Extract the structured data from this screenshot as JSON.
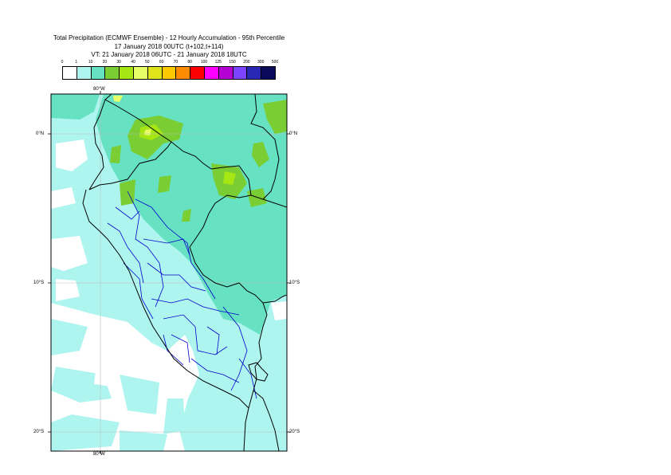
{
  "title": {
    "line1": "Total Precipitation (ECMWF Ensemble) - 12 Hourly Accumulation - 95th Percentile",
    "line2": "17 January 2018 00UTC (t+102,t+114)",
    "line3": "VT: 21 January 2018 06UTC - 21 January 2018 18UTC"
  },
  "legend": {
    "ticks": [
      "0",
      "1",
      "10",
      "20",
      "30",
      "40",
      "50",
      "60",
      "70",
      "80",
      "100",
      "125",
      "150",
      "200",
      "300",
      "500"
    ],
    "colors": [
      "#ffffff",
      "#aef5f0",
      "#66e2c2",
      "#7acd32",
      "#a6e612",
      "#e6ff66",
      "#e0e41a",
      "#fcc800",
      "#ff8c00",
      "#ff0000",
      "#ff00ff",
      "#b400d2",
      "#7d44ff",
      "#2828b4",
      "#0a0a5a"
    ]
  },
  "map": {
    "lon_labels": {
      "top": "80°W",
      "bottom": "80°W"
    },
    "lat_labels": [
      "0°N",
      "10°S",
      "20°S"
    ],
    "colors": {
      "ocean_base": "#ffffff",
      "light": "#aef5f0",
      "medium": "#66e2c2",
      "green": "#7acd32",
      "lime": "#a6e612",
      "yellow": "#e6ff66",
      "coast": "#000000",
      "border": "#0000cc",
      "grid": "#bbbbbb"
    }
  }
}
